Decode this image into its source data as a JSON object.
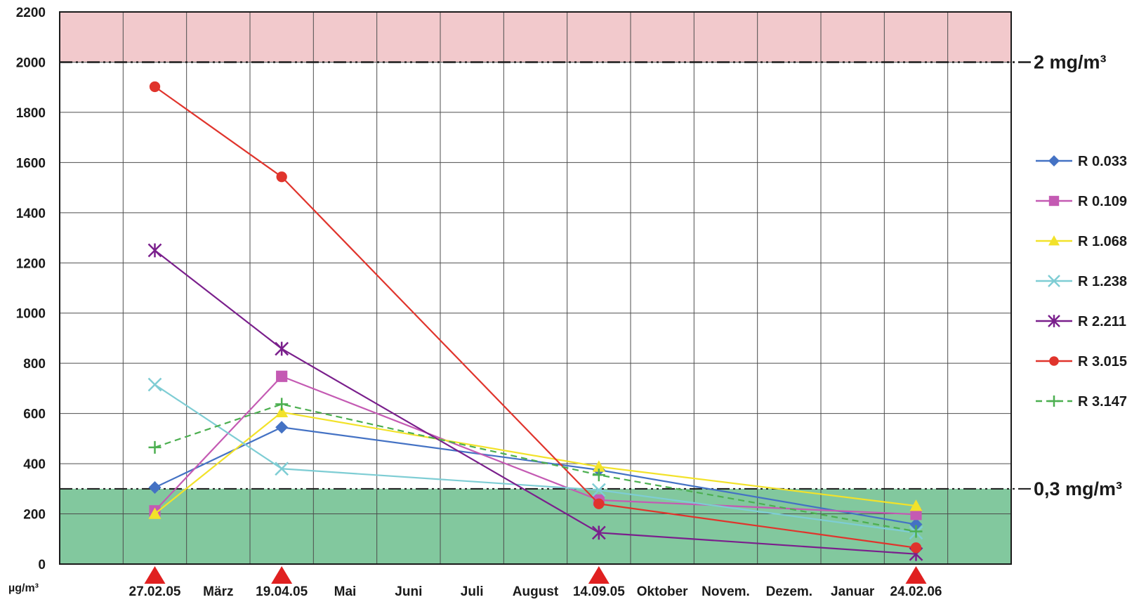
{
  "chart_data": {
    "type": "line",
    "title": "",
    "xlabel": "",
    "ylabel": "",
    "unit_label": "µg/m³",
    "ylim": [
      0,
      2200
    ],
    "yticks": [
      0,
      200,
      400,
      600,
      800,
      1000,
      1200,
      1400,
      1600,
      1800,
      2000,
      2200
    ],
    "grid": true,
    "legend_position": "right",
    "x_labels": [
      "27.02.05",
      "März",
      "19.04.05",
      "Mai",
      "Juni",
      "Juli",
      "August",
      "14.09.05",
      "Oktober",
      "Novem.",
      "Dezem.",
      "Januar",
      "24.02.06"
    ],
    "measurement_dates": [
      "27.02.05",
      "19.04.05",
      "14.09.05",
      "24.02.06"
    ],
    "reference_lines": [
      {
        "value": 2000,
        "label": "2 mg/m³",
        "band_color": "#f2c9cc"
      },
      {
        "value": 300,
        "label": "0,3 mg/m³",
        "band_color": "#82c89e"
      }
    ],
    "marker_color": "#e02020",
    "series": [
      {
        "name": "R 0.033",
        "color": "#4472c4",
        "marker": "diamond",
        "dashed": false,
        "values": [
          305,
          545,
          375,
          158
        ]
      },
      {
        "name": "R 0.109",
        "color": "#c45ab3",
        "marker": "square",
        "dashed": false,
        "values": [
          212,
          748,
          255,
          198
        ]
      },
      {
        "name": "R 1.068",
        "color": "#f2e22a",
        "marker": "triangle",
        "dashed": false,
        "values": [
          200,
          605,
          388,
          232
        ]
      },
      {
        "name": "R 1.238",
        "color": "#7ecdd4",
        "marker": "x",
        "dashed": false,
        "values": [
          715,
          380,
          295,
          125
        ]
      },
      {
        "name": "R 2.211",
        "color": "#7a1f8c",
        "marker": "star",
        "dashed": false,
        "values": [
          1250,
          858,
          125,
          40
        ]
      },
      {
        "name": "R 3.015",
        "color": "#e0342c",
        "marker": "circle",
        "dashed": false,
        "values": [
          1902,
          1543,
          240,
          65
        ]
      },
      {
        "name": "R 3.147",
        "color": "#4caf50",
        "marker": "plus",
        "dashed": true,
        "values": [
          465,
          637,
          355,
          130
        ]
      }
    ]
  }
}
